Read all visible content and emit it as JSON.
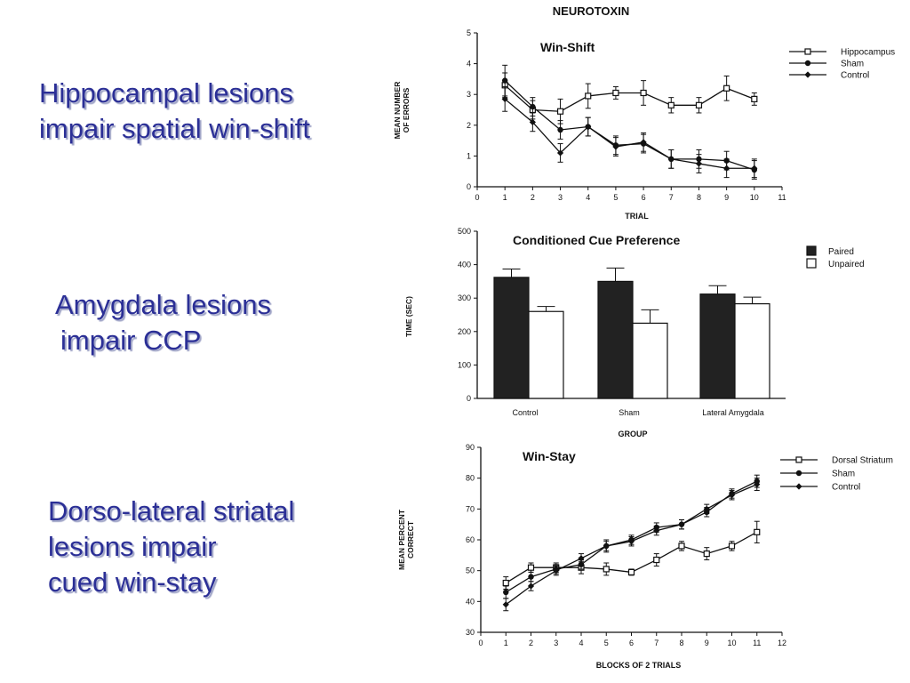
{
  "slide": {
    "main_title": "NEUROTOXIN",
    "captions": [
      {
        "lines": [
          "Hippocampal lesions",
          "impair spatial win-shift"
        ]
      },
      {
        "lines": [
          "Amygdala lesions",
          "impair CCP"
        ]
      },
      {
        "lines": [
          "Dorso-lateral striatal",
          "lesions impair",
          "cued win-stay"
        ]
      }
    ]
  },
  "chart_data": [
    {
      "type": "line",
      "title": "Win-Shift",
      "xlabel": "TRIAL",
      "ylabel": "MEAN NUMBER OF ERRORS",
      "ylabel_lines": [
        "MEAN NUMBER",
        "OF ERRORS"
      ],
      "xlim": [
        0,
        11
      ],
      "ylim": [
        0,
        5
      ],
      "xticks": [
        0,
        1,
        2,
        3,
        4,
        5,
        6,
        7,
        8,
        9,
        10,
        11
      ],
      "yticks": [
        0,
        1,
        2,
        3,
        4,
        5
      ],
      "legend_position": "top-right",
      "x": [
        1,
        2,
        3,
        4,
        5,
        6,
        7,
        8,
        9,
        10
      ],
      "series": [
        {
          "name": "Hippocampus",
          "marker": "open-square",
          "values": [
            3.3,
            2.5,
            2.45,
            2.95,
            3.05,
            3.05,
            2.65,
            2.65,
            3.2,
            2.85
          ],
          "errors": [
            0.4,
            0.3,
            0.4,
            0.4,
            0.2,
            0.4,
            0.25,
            0.25,
            0.4,
            0.2
          ]
        },
        {
          "name": "Sham",
          "marker": "filled-circle",
          "values": [
            3.45,
            2.6,
            1.85,
            1.95,
            1.35,
            1.4,
            0.9,
            0.9,
            0.85,
            0.55
          ],
          "errors": [
            0.5,
            0.3,
            0.3,
            0.3,
            0.3,
            0.3,
            0.3,
            0.3,
            0.3,
            0.3
          ]
        },
        {
          "name": "Control",
          "marker": "filled-diamond",
          "values": [
            2.85,
            2.1,
            1.1,
            1.95,
            1.3,
            1.45,
            0.9,
            0.75,
            0.6,
            0.6
          ],
          "errors": [
            0.4,
            0.3,
            0.3,
            0.3,
            0.3,
            0.3,
            0.3,
            0.3,
            0.3,
            0.3
          ]
        }
      ]
    },
    {
      "type": "bar",
      "title": "Conditioned Cue Preference",
      "xlabel": "GROUP",
      "ylabel": "TIME (SEC)",
      "ylim": [
        0,
        500
      ],
      "yticks": [
        0,
        100,
        200,
        300,
        400,
        500
      ],
      "legend_position": "top-right",
      "categories": [
        "Control",
        "Sham",
        "Lateral Amygdala"
      ],
      "series": [
        {
          "name": "Paired",
          "fill": "#222222",
          "values": [
            362,
            350,
            312
          ],
          "errors": [
            25,
            40,
            25
          ]
        },
        {
          "name": "Unpaired",
          "fill": "#ffffff",
          "values": [
            260,
            225,
            283
          ],
          "errors": [
            15,
            40,
            20
          ]
        }
      ]
    },
    {
      "type": "line",
      "title": "Win-Stay",
      "xlabel": "BLOCKS OF 2 TRIALS",
      "ylabel": "MEAN PERCENT CORRECT",
      "ylabel_lines": [
        "MEAN PERCENT",
        "CORRECT"
      ],
      "xlim": [
        0,
        12
      ],
      "ylim": [
        30,
        90
      ],
      "xticks": [
        0,
        1,
        2,
        3,
        4,
        5,
        6,
        7,
        8,
        9,
        10,
        11,
        12
      ],
      "yticks": [
        30,
        40,
        50,
        60,
        70,
        80,
        90
      ],
      "legend_position": "top-right",
      "x": [
        1,
        2,
        3,
        4,
        5,
        6,
        7,
        8,
        9,
        10,
        11
      ],
      "series": [
        {
          "name": "Dorsal Striatum",
          "marker": "open-square",
          "values": [
            46,
            51,
            51,
            51,
            50.5,
            49.5,
            53.5,
            58,
            55.5,
            58,
            62.5
          ],
          "errors": [
            2,
            1.5,
            1.5,
            2,
            2,
            1,
            2,
            1.5,
            2,
            1.5,
            3.5
          ]
        },
        {
          "name": "Sham",
          "marker": "filled-circle",
          "values": [
            43,
            48,
            50.5,
            52,
            58,
            60,
            64,
            65,
            69,
            75,
            79
          ],
          "errors": [
            2,
            1.5,
            1.5,
            1.5,
            2,
            1.5,
            1.5,
            1.5,
            1.5,
            1.5,
            2
          ]
        },
        {
          "name": "Control",
          "marker": "filled-diamond",
          "values": [
            39,
            45,
            50,
            54,
            58,
            59.5,
            63,
            65,
            70,
            74.5,
            78
          ],
          "errors": [
            2,
            1.5,
            1.5,
            1.5,
            1.5,
            1.5,
            1.5,
            1.5,
            1.5,
            1.5,
            2
          ]
        }
      ]
    }
  ]
}
